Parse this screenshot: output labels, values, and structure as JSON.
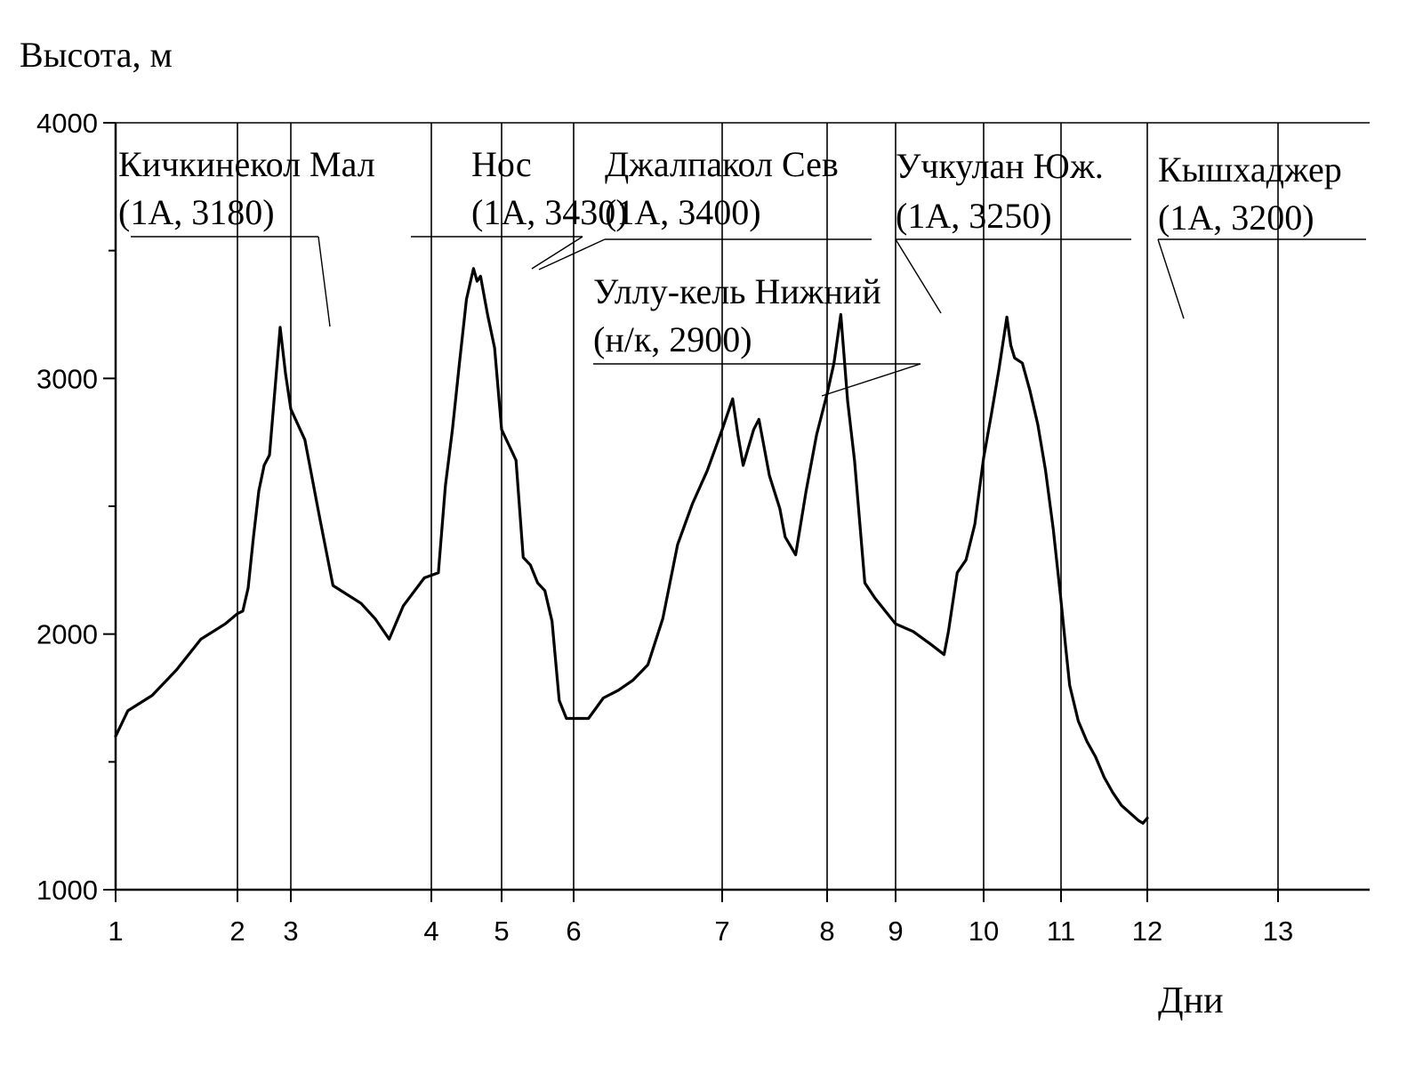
{
  "chart_data": {
    "type": "line",
    "title": "",
    "xlabel": "Дни",
    "ylabel": "Высота, м",
    "ylim": [
      1000,
      4000
    ],
    "y_ticks": [
      "1000",
      "2000",
      "3000",
      "4000"
    ],
    "x_ticks": [
      "1",
      "2",
      "3",
      "4",
      "5",
      "6",
      "7",
      "8",
      "9",
      "10",
      "11",
      "12",
      "13"
    ],
    "grid": "vertical lines at day boundaries",
    "series": [
      {
        "profile": [
          [
            0,
            1600
          ],
          [
            0.1,
            1700
          ],
          [
            0.3,
            1760
          ],
          [
            0.5,
            1860
          ],
          [
            0.7,
            1980
          ],
          [
            0.9,
            2040
          ],
          [
            1.0,
            2080
          ],
          [
            1.1,
            2090
          ],
          [
            1.2,
            2180
          ],
          [
            1.3,
            2380
          ],
          [
            1.4,
            2560
          ],
          [
            1.5,
            2660
          ],
          [
            1.6,
            2700
          ],
          [
            1.7,
            2950
          ],
          [
            1.8,
            3200
          ],
          [
            1.9,
            3020
          ],
          [
            2.0,
            2880
          ],
          [
            2.1,
            2760
          ],
          [
            2.2,
            2470
          ],
          [
            2.3,
            2190
          ],
          [
            2.5,
            2120
          ],
          [
            2.6,
            2060
          ],
          [
            2.7,
            1980
          ],
          [
            2.8,
            2110
          ],
          [
            2.95,
            2220
          ],
          [
            3.1,
            2240
          ],
          [
            3.2,
            2580
          ],
          [
            3.3,
            2800
          ],
          [
            3.4,
            3060
          ],
          [
            3.5,
            3310
          ],
          [
            3.6,
            3430
          ],
          [
            3.65,
            3380
          ],
          [
            3.7,
            3400
          ],
          [
            3.8,
            3250
          ],
          [
            3.9,
            3120
          ],
          [
            4.0,
            2800
          ],
          [
            4.1,
            2740
          ],
          [
            4.2,
            2680
          ],
          [
            4.3,
            2300
          ],
          [
            4.4,
            2270
          ],
          [
            4.5,
            2200
          ],
          [
            4.6,
            2170
          ],
          [
            4.7,
            2050
          ],
          [
            4.8,
            1740
          ],
          [
            4.9,
            1670
          ],
          [
            5.0,
            1670
          ],
          [
            5.1,
            1670
          ],
          [
            5.2,
            1750
          ],
          [
            5.3,
            1780
          ],
          [
            5.4,
            1820
          ],
          [
            5.5,
            1880
          ],
          [
            5.6,
            2060
          ],
          [
            5.7,
            2350
          ],
          [
            5.8,
            2510
          ],
          [
            5.9,
            2640
          ],
          [
            6.0,
            2800
          ],
          [
            6.1,
            2920
          ],
          [
            6.15,
            2780
          ],
          [
            6.2,
            2660
          ],
          [
            6.3,
            2800
          ],
          [
            6.35,
            2840
          ],
          [
            6.45,
            2620
          ],
          [
            6.55,
            2490
          ],
          [
            6.6,
            2380
          ],
          [
            6.7,
            2310
          ],
          [
            6.8,
            2560
          ],
          [
            6.9,
            2780
          ],
          [
            7.0,
            2940
          ],
          [
            7.1,
            3060
          ],
          [
            7.2,
            3250
          ],
          [
            7.3,
            2910
          ],
          [
            7.4,
            2680
          ],
          [
            7.55,
            2200
          ],
          [
            7.7,
            2140
          ],
          [
            7.85,
            2090
          ],
          [
            8.0,
            2040
          ],
          [
            8.2,
            2010
          ],
          [
            8.4,
            1960
          ],
          [
            8.55,
            1920
          ],
          [
            8.6,
            2010
          ],
          [
            8.7,
            2240
          ],
          [
            8.8,
            2290
          ],
          [
            8.9,
            2430
          ],
          [
            9.0,
            2690
          ],
          [
            9.1,
            2860
          ],
          [
            9.2,
            3040
          ],
          [
            9.3,
            3240
          ],
          [
            9.35,
            3130
          ],
          [
            9.4,
            3080
          ],
          [
            9.5,
            3060
          ],
          [
            9.6,
            2950
          ],
          [
            9.7,
            2820
          ],
          [
            9.8,
            2640
          ],
          [
            9.9,
            2410
          ],
          [
            10.0,
            2130
          ],
          [
            10.05,
            1960
          ],
          [
            10.1,
            1800
          ],
          [
            10.2,
            1660
          ],
          [
            10.3,
            1580
          ],
          [
            10.4,
            1520
          ],
          [
            10.5,
            1440
          ],
          [
            10.6,
            1380
          ],
          [
            10.7,
            1330
          ],
          [
            10.8,
            1300
          ],
          [
            10.9,
            1270
          ],
          [
            10.95,
            1260
          ],
          [
            11.0,
            1280
          ]
        ]
      }
    ],
    "annotations": [
      {
        "name": "Кичкинекол Мал",
        "detail": "(1А, 3180)"
      },
      {
        "name": "Нос",
        "detail": "(1А, 3430)"
      },
      {
        "name": "Джалпакол Сев",
        "detail": "(1А, 3400)"
      },
      {
        "name": "Уллу-кель Нижний",
        "detail": "(н/к, 2900)"
      },
      {
        "name": "Учкулан Юж.",
        "detail": "(1А, 3250)"
      },
      {
        "name": "Кышхаджер",
        "detail": "(1А, 3200)"
      }
    ]
  }
}
